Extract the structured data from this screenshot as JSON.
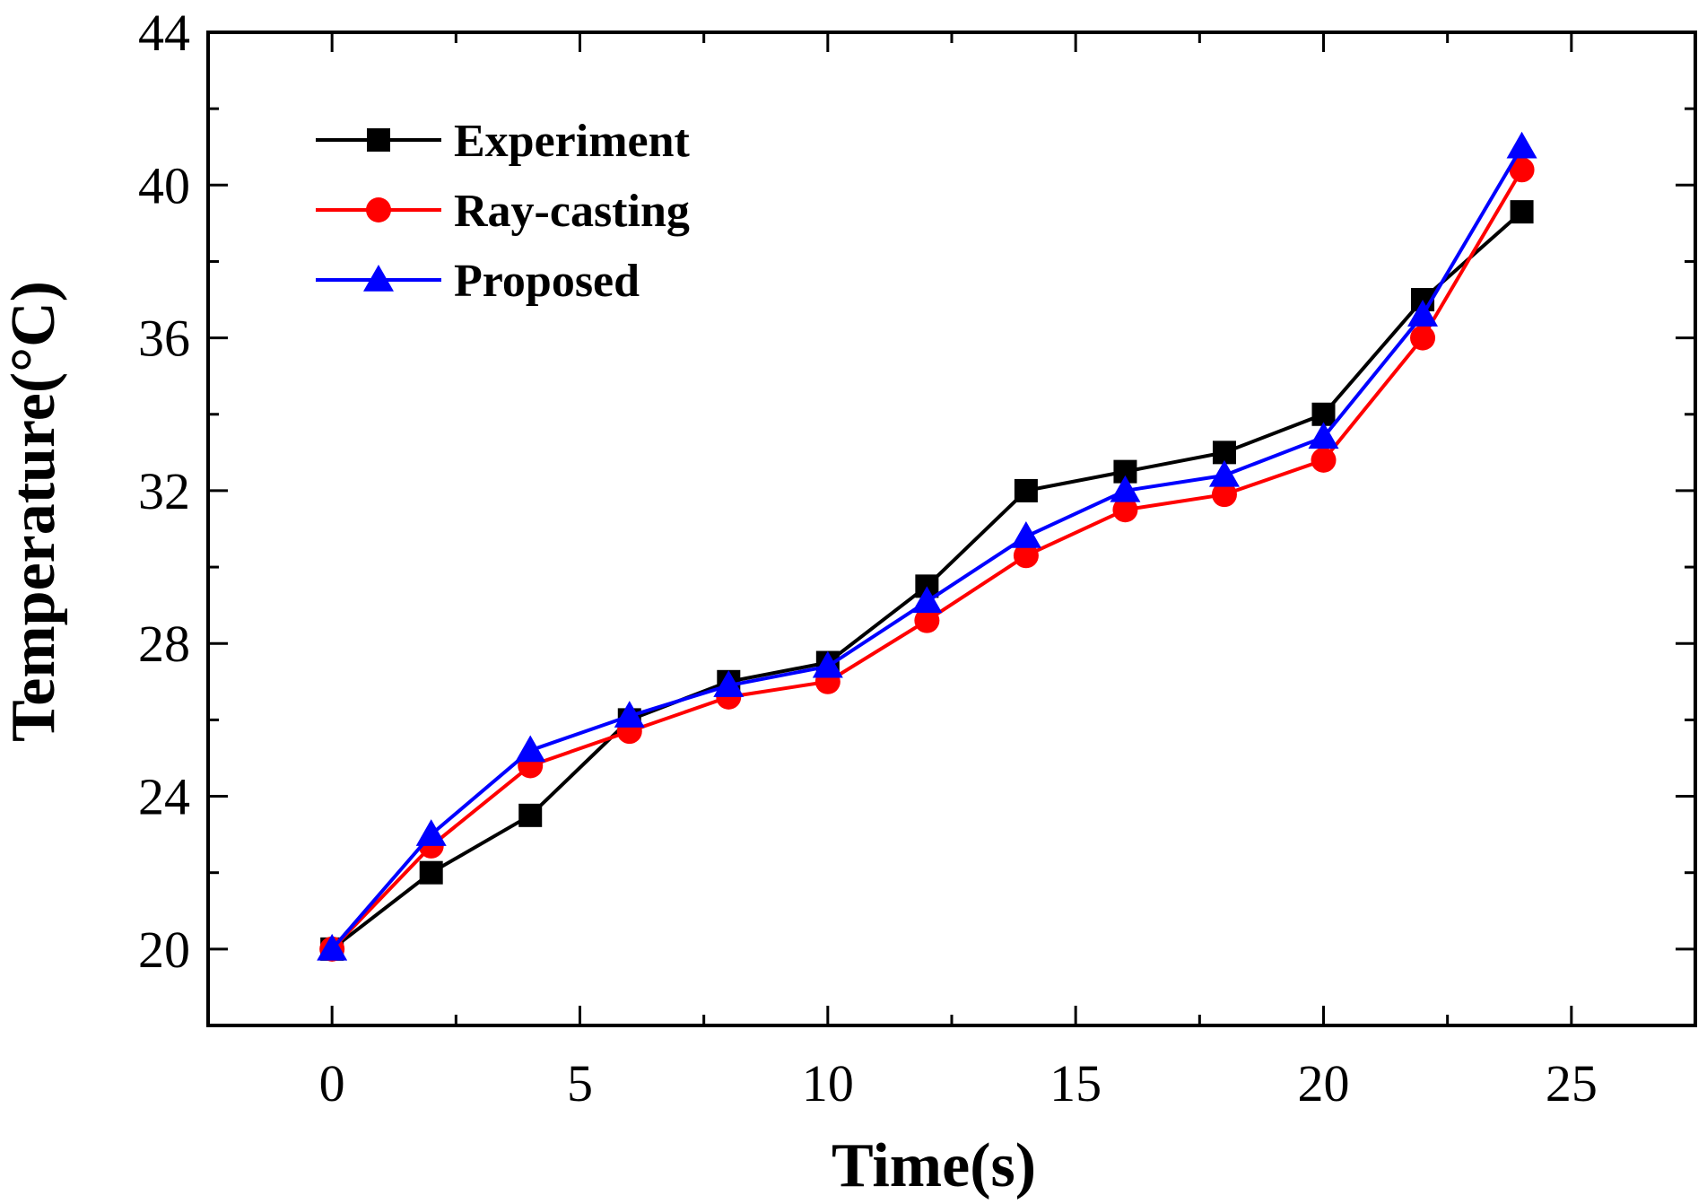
{
  "chart_data": {
    "type": "line",
    "title": "",
    "xlabel": "Time(s)",
    "ylabel": "Temperature(°C)",
    "xlim": [
      -2.5,
      27.5
    ],
    "ylim": [
      18,
      44
    ],
    "xticks": [
      0,
      5,
      10,
      15,
      20,
      25
    ],
    "yticks": [
      20,
      24,
      28,
      32,
      36,
      40,
      44
    ],
    "xtick_labels": [
      "0",
      "5",
      "10",
      "15",
      "20",
      "25"
    ],
    "ytick_labels": [
      "20",
      "24",
      "28",
      "32",
      "36",
      "40",
      "44"
    ],
    "grid": false,
    "legend_position": "top-left",
    "x": [
      0,
      2,
      4,
      6,
      8,
      10,
      12,
      14,
      16,
      18,
      20,
      22,
      24
    ],
    "series": [
      {
        "name": "Experiment",
        "color": "#000000",
        "marker": "square",
        "values": [
          20.0,
          22.0,
          23.5,
          26.0,
          27.0,
          27.5,
          29.5,
          32.0,
          32.5,
          33.0,
          34.0,
          37.0,
          39.3
        ]
      },
      {
        "name": "Ray-casting",
        "color": "#ff0000",
        "marker": "circle",
        "values": [
          20.0,
          22.7,
          24.8,
          25.7,
          26.6,
          27.0,
          28.6,
          30.3,
          31.5,
          31.9,
          32.8,
          36.0,
          40.4
        ]
      },
      {
        "name": "Proposed",
        "color": "#0000ff",
        "marker": "triangle",
        "values": [
          20.0,
          23.0,
          25.2,
          26.1,
          26.9,
          27.4,
          29.1,
          30.8,
          32.0,
          32.4,
          33.4,
          36.6,
          41.0
        ]
      }
    ]
  }
}
